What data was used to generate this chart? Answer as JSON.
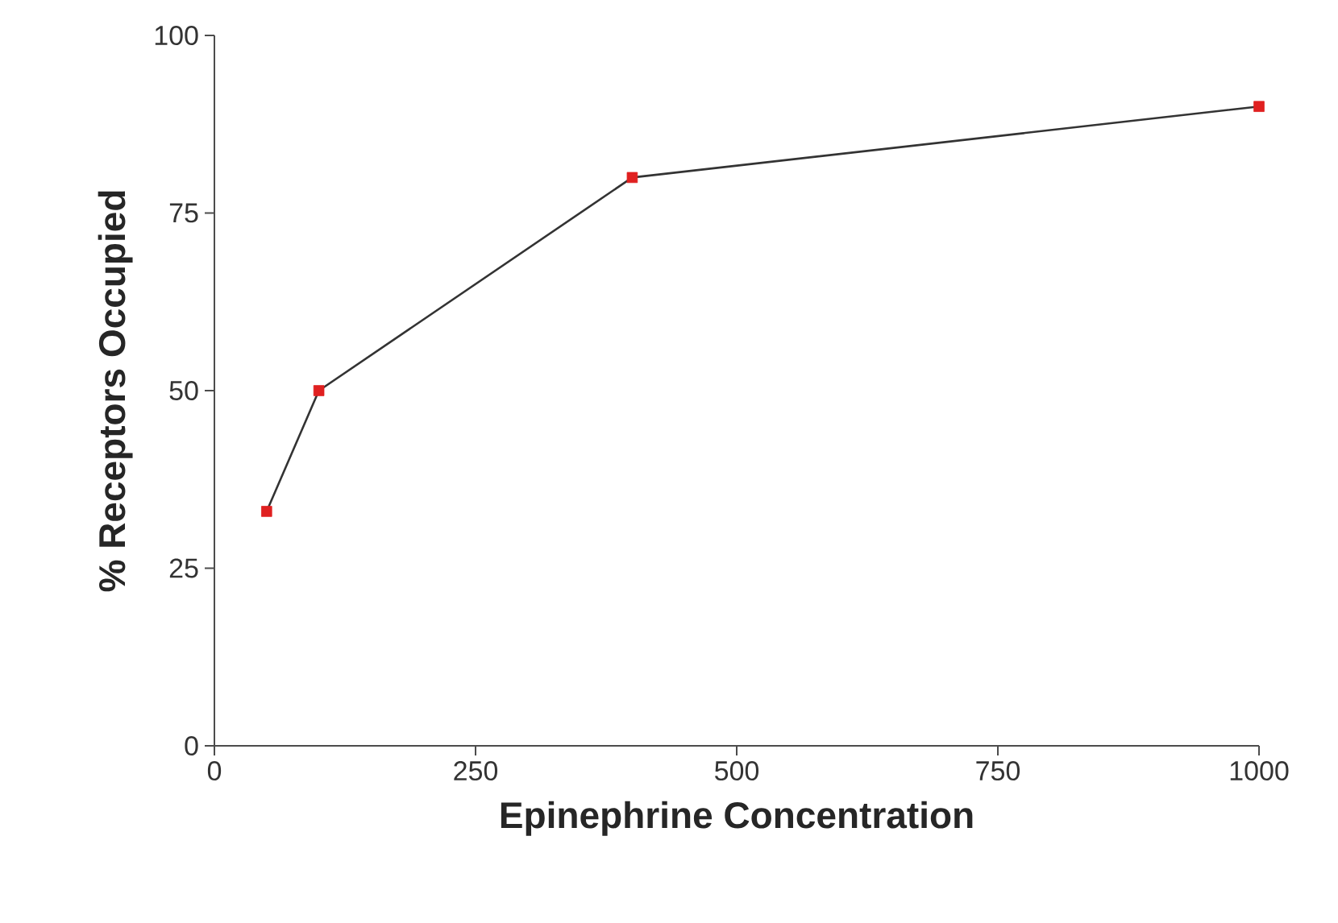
{
  "chart_data": {
    "type": "line",
    "xlabel": "Epinephrine Concentration",
    "ylabel": "% Receptors Occupied",
    "x": [
      50,
      100,
      400,
      1000
    ],
    "series": [
      {
        "color": "#333333",
        "colors": [
          "#e02020",
          "#e02020",
          "#e02020",
          "#e02020"
        ],
        "values": [
          33,
          50,
          80,
          90
        ]
      }
    ],
    "marker": "square",
    "line_style": "solid",
    "xlim": [
      0,
      1000
    ],
    "ylim": [
      0,
      100
    ],
    "xticks": [
      0,
      250,
      500,
      750,
      1000
    ],
    "yticks": [
      0,
      25,
      50,
      75,
      100
    ]
  }
}
